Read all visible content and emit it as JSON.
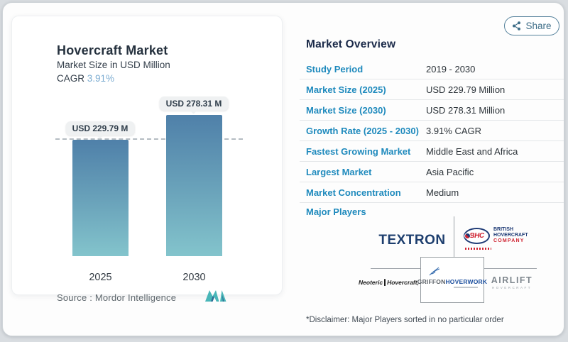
{
  "share": {
    "label": "Share"
  },
  "chart_card": {
    "title": "Hovercraft Market",
    "subtitle": "Market Size in USD Million",
    "cagr_label": "CAGR",
    "cagr_value": "3.91%",
    "source_label": "Source :",
    "source_value": "Mordor Intelligence"
  },
  "chart_data": {
    "type": "bar",
    "title": "Hovercraft Market",
    "subtitle": "Market Size in USD Million",
    "unit": "USD Million",
    "categories": [
      "2025",
      "2030"
    ],
    "values": [
      229.79,
      278.31
    ],
    "value_labels": [
      "USD 229.79 M",
      "USD 278.31 M"
    ],
    "reference_line": 229.79,
    "ylim": [
      0,
      278.31
    ],
    "grid": false,
    "legend": false,
    "bar_gradient_top": "#4f80a9",
    "bar_gradient_bottom": "#83c4cc"
  },
  "overview": {
    "title": "Market Overview",
    "rows": [
      {
        "label": "Study Period",
        "value": "2019 - 2030"
      },
      {
        "label": "Market Size (2025)",
        "value": "USD 229.79 Million"
      },
      {
        "label": "Market Size (2030)",
        "value": "USD 278.31 Million"
      },
      {
        "label": "Growth Rate (2025 - 2030)",
        "value": "3.91% CAGR"
      },
      {
        "label": "Fastest Growing Market",
        "value": "Middle East and Africa"
      },
      {
        "label": "Largest Market",
        "value": "Asia Pacific"
      },
      {
        "label": "Market Concentration",
        "value": "Medium"
      }
    ],
    "major_players_label": "Major Players",
    "players": {
      "textron": "TEXTRON",
      "bhc_abbr": "BHC",
      "bhc_line1": "BRITISH",
      "bhc_line2": "HOVERCRAFT",
      "bhc_line3": "COMPANY",
      "neoteric_part1": "Neoteric",
      "neoteric_part2": "Hovercraft, Inc.",
      "griffon_part1": "GRIFFON",
      "griffon_part2": "HOVERWORK",
      "airlift_line1": "AIRLIFT",
      "airlift_line2": "HOVERCRAFT"
    }
  },
  "disclaimer": "*Disclaimer: Major Players sorted in no particular order",
  "colors": {
    "accent_blue": "#1f8abd",
    "heading_navy": "#1b2a49",
    "cagr_blue": "#7dadd2",
    "bar_top": "#4f80a9",
    "bar_bottom": "#83c4cc",
    "share_teal": "#3f6e88",
    "textron_navy": "#1d3e6e",
    "bhc_red": "#cf2331"
  }
}
